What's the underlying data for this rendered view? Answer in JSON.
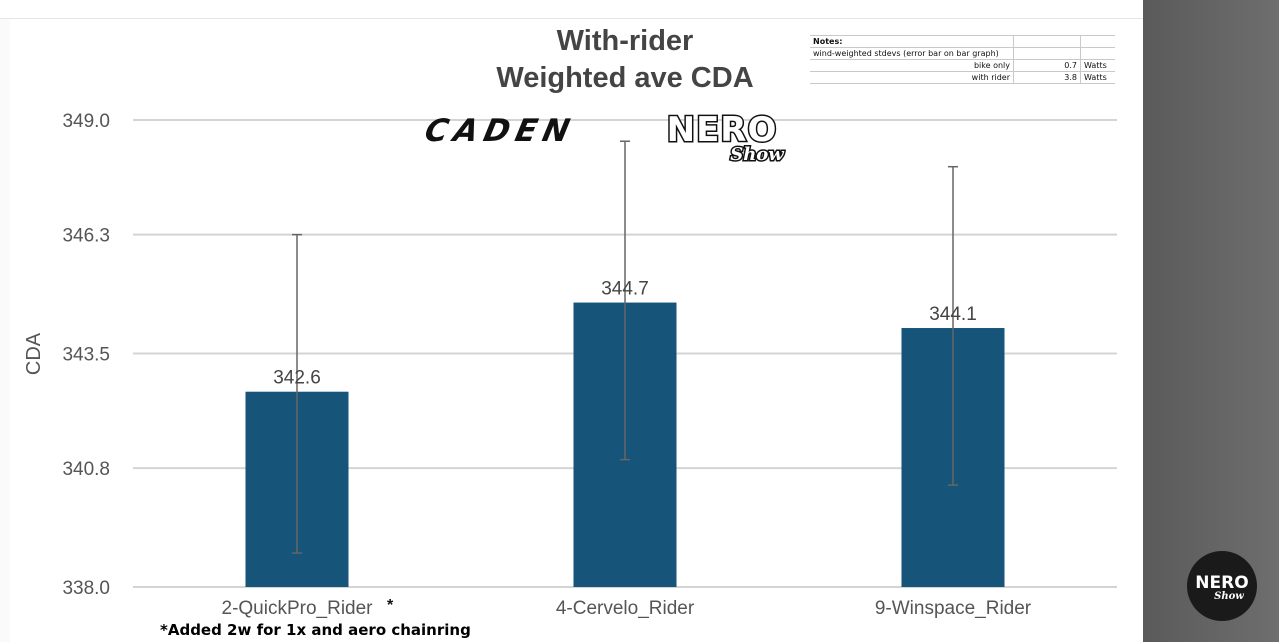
{
  "chart_data": {
    "type": "bar",
    "title_lines": [
      "With-rider",
      "Weighted ave CDA"
    ],
    "ylabel": "CDA",
    "xlabel": "",
    "ylim": [
      338.0,
      349.0
    ],
    "yticks": [
      338.0,
      340.8,
      343.5,
      346.3,
      349.0
    ],
    "ytick_labels": [
      "338.0",
      "340.8",
      "343.5",
      "346.3",
      "349.0"
    ],
    "categories": [
      "2-QuickPro_Rider",
      "4-Cervelo_Rider",
      "9-Winspace_Rider"
    ],
    "category_marks": [
      "*",
      "",
      ""
    ],
    "values": [
      342.6,
      344.7,
      344.1
    ],
    "value_labels": [
      "342.6",
      "344.7",
      "344.1"
    ],
    "error_bars": [
      {
        "low": 338.8,
        "high": 346.3
      },
      {
        "low": 341.0,
        "high": 348.5
      },
      {
        "low": 340.4,
        "high": 347.9
      }
    ],
    "grid": true,
    "bar_color": "#165479"
  },
  "notes": {
    "header": "Notes:",
    "description": "wind-weighted stdevs (error bar on bar graph)",
    "rows": [
      {
        "label": "bike only",
        "value": "0.7",
        "unit": "Watts"
      },
      {
        "label": "with rider",
        "value": "3.8",
        "unit": "Watts"
      }
    ]
  },
  "logos": {
    "brand": "CADEN",
    "show_top": "NERO",
    "show_bottom": "Show",
    "badge_top": "NERO",
    "badge_bottom": "Show"
  },
  "footnote": "*Added 2w for 1x and aero chainring"
}
